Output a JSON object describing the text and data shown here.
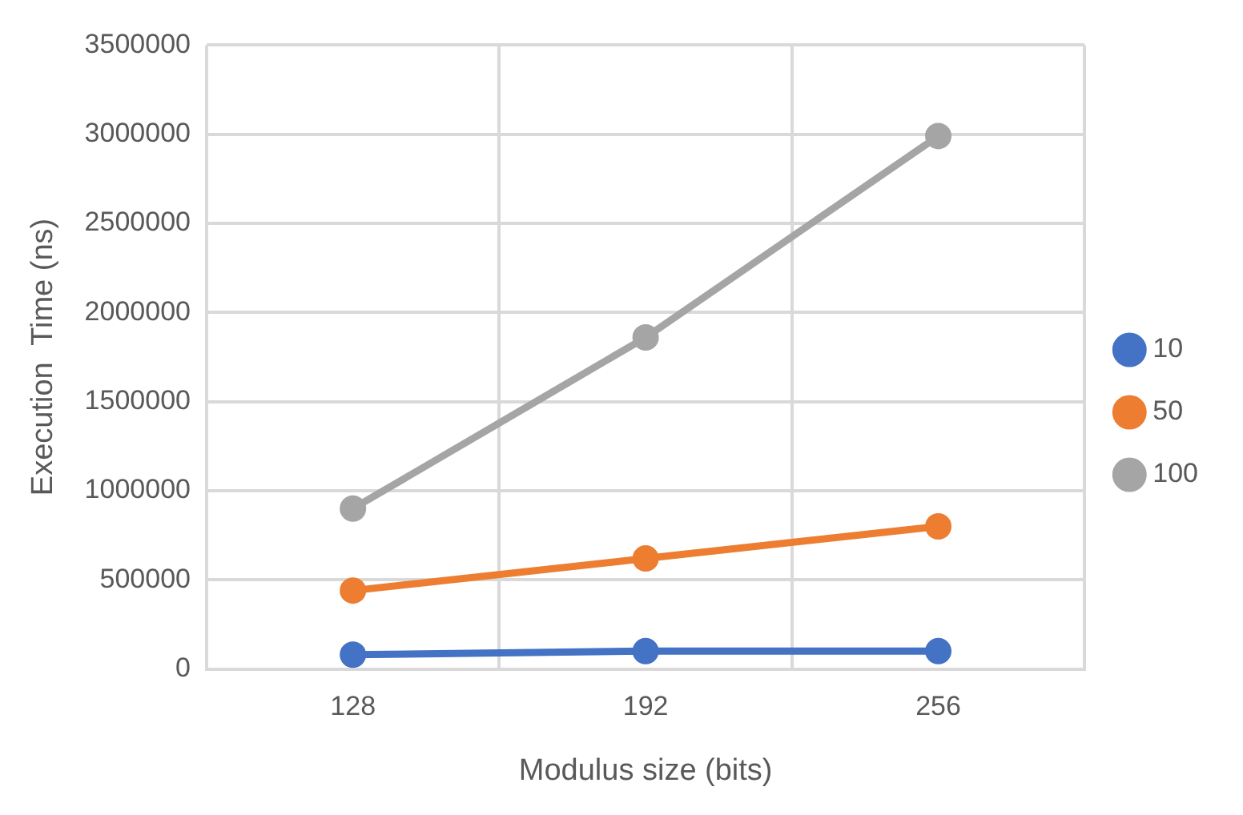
{
  "chart_data": {
    "type": "line",
    "xlabel": "Modulus size (bits)",
    "ylabel": "Execution  Time (ns)",
    "categories": [
      "128",
      "192",
      "256"
    ],
    "series": [
      {
        "name": "10",
        "color": "#4472c4",
        "values": [
          80000,
          100000,
          100000
        ]
      },
      {
        "name": "50",
        "color": "#ed7d31",
        "values": [
          440000,
          620000,
          800000
        ]
      },
      {
        "name": "100",
        "color": "#a5a5a5",
        "values": [
          900000,
          1860000,
          2990000
        ]
      }
    ],
    "ylim": [
      0,
      3500000
    ],
    "yticks": [
      0,
      500000,
      1000000,
      1500000,
      2000000,
      2500000,
      3000000,
      3500000
    ],
    "grid": true,
    "legend": "right",
    "marker": "circle"
  }
}
